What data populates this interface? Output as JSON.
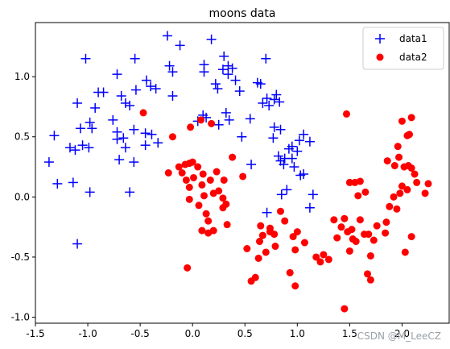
{
  "chart_data": {
    "type": "scatter",
    "title": "moons data",
    "xlabel": "",
    "ylabel": "",
    "xlim": [
      -1.5,
      2.45
    ],
    "ylim": [
      -1.05,
      1.45
    ],
    "xticks": [
      -1.5,
      -1.0,
      -0.5,
      0.0,
      0.5,
      1.0,
      1.5,
      2.0
    ],
    "yticks": [
      -1.0,
      -0.5,
      0.0,
      0.5,
      1.0
    ],
    "xtick_labels": [
      "-1.5",
      "-1.0",
      "-0.5",
      "0.0",
      "0.5",
      "1.0",
      "1.5",
      "2.0"
    ],
    "ytick_labels": [
      "-1.0",
      "-0.5",
      "0.0",
      "0.5",
      "1.0"
    ],
    "legend_position": "top-right",
    "grid": false,
    "series": [
      {
        "name": "data1",
        "marker": "plus",
        "color": "#0000ff",
        "points": [
          [
            -1.32,
            0.51
          ],
          [
            -1.37,
            0.29
          ],
          [
            -1.29,
            0.11
          ],
          [
            -1.14,
            0.12
          ],
          [
            -1.1,
            -0.39
          ],
          [
            -1.1,
            0.78
          ],
          [
            -1.07,
            0.57
          ],
          [
            -1.02,
            1.15
          ],
          [
            -0.98,
            0.62
          ],
          [
            -0.96,
            0.57
          ],
          [
            -0.93,
            0.74
          ],
          [
            -0.9,
            0.87
          ],
          [
            -0.85,
            0.87
          ],
          [
            -0.76,
            0.64
          ],
          [
            -0.72,
            1.02
          ],
          [
            -0.68,
            0.84
          ],
          [
            -0.64,
            0.78
          ],
          [
            -0.6,
            0.76
          ],
          [
            -0.55,
            1.15
          ],
          [
            -0.54,
            0.89
          ],
          [
            -0.44,
            0.97
          ],
          [
            -0.4,
            0.92
          ],
          [
            -0.35,
            0.9
          ],
          [
            -0.24,
            1.34
          ],
          [
            -0.22,
            1.09
          ],
          [
            -0.19,
            1.04
          ],
          [
            -0.12,
            1.26
          ],
          [
            -0.19,
            0.84
          ],
          [
            -1.17,
            0.41
          ],
          [
            -1.12,
            0.39
          ],
          [
            -1.05,
            0.43
          ],
          [
            -0.99,
            0.41
          ],
          [
            -0.98,
            0.04
          ],
          [
            -0.72,
            0.54
          ],
          [
            -0.72,
            0.48
          ],
          [
            -0.7,
            0.31
          ],
          [
            -0.66,
            0.49
          ],
          [
            -0.64,
            0.41
          ],
          [
            -0.56,
            0.56
          ],
          [
            -0.56,
            0.29
          ],
          [
            -0.6,
            0.04
          ],
          [
            -0.45,
            0.43
          ],
          [
            -0.45,
            0.53
          ],
          [
            -0.39,
            0.52
          ],
          [
            -0.33,
            0.45
          ],
          [
            0.05,
            0.63
          ],
          [
            0.1,
            0.68
          ],
          [
            0.13,
            0.66
          ],
          [
            0.11,
            1.04
          ],
          [
            0.11,
            1.1
          ],
          [
            0.18,
            1.31
          ],
          [
            0.24,
            0.9
          ],
          [
            0.29,
            1.06
          ],
          [
            0.3,
            1.17
          ],
          [
            0.34,
            1.09
          ],
          [
            0.34,
            1.02
          ],
          [
            0.38,
            1.07
          ],
          [
            0.41,
            0.97
          ],
          [
            0.45,
            0.88
          ],
          [
            0.22,
            0.94
          ],
          [
            0.25,
            0.6
          ],
          [
            0.32,
            0.7
          ],
          [
            0.35,
            0.64
          ],
          [
            0.47,
            0.5
          ],
          [
            0.55,
            0.65
          ],
          [
            0.56,
            0.27
          ],
          [
            0.62,
            0.95
          ],
          [
            0.65,
            0.94
          ],
          [
            0.7,
            1.15
          ],
          [
            0.67,
            0.78
          ],
          [
            0.71,
            0.82
          ],
          [
            0.73,
            0.76
          ],
          [
            0.78,
            0.81
          ],
          [
            0.8,
            0.85
          ],
          [
            0.83,
            0.79
          ],
          [
            0.77,
            0.49
          ],
          [
            0.78,
            0.58
          ],
          [
            0.84,
            0.56
          ],
          [
            0.82,
            0.34
          ],
          [
            0.84,
            0.3
          ],
          [
            0.88,
            0.32
          ],
          [
            0.87,
            0.27
          ],
          [
            0.92,
            0.4
          ],
          [
            0.95,
            0.32
          ],
          [
            0.97,
            0.25
          ],
          [
            0.95,
            0.42
          ],
          [
            1.0,
            0.38
          ],
          [
            1.02,
            0.47
          ],
          [
            1.03,
            0.18
          ],
          [
            1.06,
            0.19
          ],
          [
            1.06,
            0.52
          ],
          [
            1.12,
            0.46
          ],
          [
            1.15,
            0.02
          ],
          [
            0.85,
            0.02
          ],
          [
            0.9,
            0.06
          ],
          [
            0.71,
            -0.13
          ],
          [
            1.12,
            -0.09
          ]
        ]
      },
      {
        "name": "data2",
        "marker": "circle",
        "color": "#ff0000",
        "points": [
          [
            -0.47,
            0.7
          ],
          [
            -0.19,
            0.5
          ],
          [
            -0.02,
            0.58
          ],
          [
            0.08,
            0.64
          ],
          [
            0.18,
            0.61
          ],
          [
            -0.23,
            0.2
          ],
          [
            -0.13,
            0.25
          ],
          [
            -0.1,
            0.2
          ],
          [
            -0.07,
            0.27
          ],
          [
            -0.03,
            0.28
          ],
          [
            0.0,
            0.29
          ],
          [
            -0.06,
            0.14
          ],
          [
            -0.03,
            0.08
          ],
          [
            0.01,
            0.16
          ],
          [
            0.05,
            0.25
          ],
          [
            0.1,
            0.19
          ],
          [
            0.17,
            0.14
          ],
          [
            0.23,
            0.21
          ],
          [
            0.3,
            0.14
          ],
          [
            0.38,
            0.33
          ],
          [
            0.48,
            0.17
          ],
          [
            -0.03,
            -0.02
          ],
          [
            0.09,
            0.1
          ],
          [
            0.11,
            0.01
          ],
          [
            0.2,
            0.03
          ],
          [
            0.25,
            0.05
          ],
          [
            0.29,
            -0.01
          ],
          [
            0.32,
            -0.06
          ],
          [
            0.06,
            -0.07
          ],
          [
            0.13,
            -0.14
          ],
          [
            0.15,
            -0.2
          ],
          [
            0.09,
            -0.28
          ],
          [
            0.15,
            -0.3
          ],
          [
            0.2,
            -0.28
          ],
          [
            0.29,
            -0.09
          ],
          [
            0.33,
            -0.23
          ],
          [
            -0.05,
            -0.59
          ],
          [
            0.52,
            -0.43
          ],
          [
            0.6,
            -0.67
          ],
          [
            0.56,
            -0.7
          ],
          [
            0.63,
            -0.51
          ],
          [
            0.7,
            -0.46
          ],
          [
            0.64,
            -0.37
          ],
          [
            0.67,
            -0.32
          ],
          [
            0.65,
            -0.24
          ],
          [
            0.74,
            -0.29
          ],
          [
            0.78,
            -0.31
          ],
          [
            0.79,
            -0.41
          ],
          [
            0.74,
            -0.26
          ],
          [
            0.84,
            -0.12
          ],
          [
            0.88,
            -0.2
          ],
          [
            0.96,
            -0.33
          ],
          [
            1.0,
            -0.29
          ],
          [
            0.98,
            -0.44
          ],
          [
            0.93,
            -0.63
          ],
          [
            0.98,
            -0.74
          ],
          [
            1.07,
            -0.38
          ],
          [
            1.18,
            -0.5
          ],
          [
            1.22,
            -0.54
          ],
          [
            1.25,
            -0.48
          ],
          [
            1.3,
            -0.52
          ],
          [
            1.35,
            -0.19
          ],
          [
            1.38,
            -0.34
          ],
          [
            1.42,
            -0.25
          ],
          [
            1.45,
            -0.18
          ],
          [
            1.48,
            -0.29
          ],
          [
            1.53,
            -0.35
          ],
          [
            1.5,
            -0.45
          ],
          [
            1.56,
            -0.37
          ],
          [
            1.6,
            -0.19
          ],
          [
            1.64,
            -0.31
          ],
          [
            1.68,
            -0.31
          ],
          [
            1.7,
            -0.49
          ],
          [
            1.67,
            -0.64
          ],
          [
            1.7,
            -0.69
          ],
          [
            1.73,
            -0.36
          ],
          [
            1.76,
            -0.24
          ],
          [
            1.84,
            -0.3
          ],
          [
            1.85,
            -0.21
          ],
          [
            1.88,
            -0.08
          ],
          [
            1.92,
            0.0
          ],
          [
            1.95,
            -0.1
          ],
          [
            1.98,
            0.03
          ],
          [
            2.0,
            0.09
          ],
          [
            2.05,
            0.06
          ],
          [
            2.03,
            -0.46
          ],
          [
            2.09,
            -0.33
          ],
          [
            2.12,
            0.19
          ],
          [
            2.14,
            0.12
          ],
          [
            2.06,
            0.26
          ],
          [
            2.02,
            0.25
          ],
          [
            2.09,
            0.24
          ],
          [
            1.97,
            0.33
          ],
          [
            1.93,
            0.26
          ],
          [
            1.86,
            0.3
          ],
          [
            1.96,
            0.42
          ],
          [
            2.0,
            0.63
          ],
          [
            2.05,
            0.51
          ],
          [
            2.07,
            0.52
          ],
          [
            2.09,
            0.66
          ],
          [
            2.22,
            0.03
          ],
          [
            2.25,
            0.11
          ],
          [
            1.47,
            0.69
          ],
          [
            1.5,
            0.12
          ],
          [
            1.55,
            0.12
          ],
          [
            1.6,
            0.13
          ],
          [
            1.52,
            -0.27
          ],
          [
            1.65,
            0.04
          ],
          [
            1.45,
            -0.93
          ],
          [
            1.58,
            0.01
          ]
        ]
      }
    ]
  },
  "watermark": "CSDN @M_LeeCZ"
}
